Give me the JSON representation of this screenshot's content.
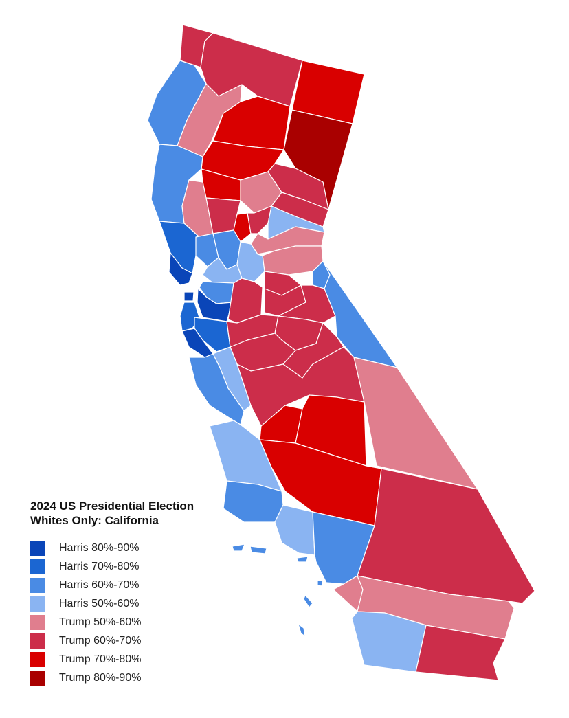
{
  "title_line1": "2024 US Presidential Election",
  "title_line2": "Whites Only: California",
  "legend": [
    {
      "label": "Harris 80%-90%",
      "color": "#0a45b8"
    },
    {
      "label": "Harris 70%-80%",
      "color": "#1b66d2"
    },
    {
      "label": "Harris 60%-70%",
      "color": "#4a8be4"
    },
    {
      "label": "Harris 50%-60%",
      "color": "#8ab4f2"
    },
    {
      "label": "Trump 50%-60%",
      "color": "#e07e8e"
    },
    {
      "label": "Trump 60%-70%",
      "color": "#cc2d4a"
    },
    {
      "label": "Trump 70%-80%",
      "color": "#d90000"
    },
    {
      "label": "Trump 80%-90%",
      "color": "#a90000"
    }
  ],
  "regions": [
    {
      "name": "Del Norte",
      "color": "#cc2d4a"
    },
    {
      "name": "Siskiyou",
      "color": "#cc2d4a"
    },
    {
      "name": "Modoc",
      "color": "#d90000"
    },
    {
      "name": "Humboldt",
      "color": "#4a8be4"
    },
    {
      "name": "Trinity",
      "color": "#e07e8e"
    },
    {
      "name": "Shasta",
      "color": "#d90000"
    },
    {
      "name": "Lassen",
      "color": "#a90000"
    },
    {
      "name": "Tehama",
      "color": "#d90000"
    },
    {
      "name": "Plumas",
      "color": "#cc2d4a"
    },
    {
      "name": "Mendocino",
      "color": "#4a8be4"
    },
    {
      "name": "Glenn",
      "color": "#d90000"
    },
    {
      "name": "Butte",
      "color": "#e07e8e"
    },
    {
      "name": "Sierra",
      "color": "#cc2d4a"
    },
    {
      "name": "Lake",
      "color": "#e07e8e"
    },
    {
      "name": "Colusa",
      "color": "#cc2d4a"
    },
    {
      "name": "Sutter",
      "color": "#d90000"
    },
    {
      "name": "Yuba",
      "color": "#cc2d4a"
    },
    {
      "name": "Nevada",
      "color": "#8ab4f2"
    },
    {
      "name": "Placer",
      "color": "#e07e8e"
    },
    {
      "name": "El Dorado",
      "color": "#e07e8e"
    },
    {
      "name": "Sonoma",
      "color": "#1b66d2"
    },
    {
      "name": "Napa",
      "color": "#4a8be4"
    },
    {
      "name": "Yolo",
      "color": "#4a8be4"
    },
    {
      "name": "Sacramento",
      "color": "#8ab4f2"
    },
    {
      "name": "Solano",
      "color": "#8ab4f2"
    },
    {
      "name": "Marin",
      "color": "#0a45b8"
    },
    {
      "name": "Contra Costa",
      "color": "#4a8be4"
    },
    {
      "name": "Alameda",
      "color": "#0a45b8"
    },
    {
      "name": "San Francisco",
      "color": "#0a45b8"
    },
    {
      "name": "San Mateo",
      "color": "#1b66d2"
    },
    {
      "name": "Santa Clara",
      "color": "#1b66d2"
    },
    {
      "name": "Santa Cruz",
      "color": "#0a45b8"
    },
    {
      "name": "San Joaquin",
      "color": "#cc2d4a"
    },
    {
      "name": "Amador",
      "color": "#cc2d4a"
    },
    {
      "name": "Calaveras",
      "color": "#cc2d4a"
    },
    {
      "name": "Alpine",
      "color": "#4a8be4"
    },
    {
      "name": "Tuolumne",
      "color": "#cc2d4a"
    },
    {
      "name": "Mono",
      "color": "#4a8be4"
    },
    {
      "name": "Stanislaus",
      "color": "#cc2d4a"
    },
    {
      "name": "Mariposa",
      "color": "#cc2d4a"
    },
    {
      "name": "Merced",
      "color": "#cc2d4a"
    },
    {
      "name": "Madera",
      "color": "#cc2d4a"
    },
    {
      "name": "San Benito",
      "color": "#8ab4f2"
    },
    {
      "name": "Monterey",
      "color": "#4a8be4"
    },
    {
      "name": "Fresno",
      "color": "#cc2d4a"
    },
    {
      "name": "Inyo",
      "color": "#e07e8e"
    },
    {
      "name": "Kings",
      "color": "#d90000"
    },
    {
      "name": "Tulare",
      "color": "#d90000"
    },
    {
      "name": "San Luis Obispo",
      "color": "#8ab4f2"
    },
    {
      "name": "Kern",
      "color": "#d90000"
    },
    {
      "name": "Santa Barbara",
      "color": "#4a8be4"
    },
    {
      "name": "Ventura",
      "color": "#8ab4f2"
    },
    {
      "name": "Los Angeles",
      "color": "#4a8be4"
    },
    {
      "name": "San Bernardino",
      "color": "#cc2d4a"
    },
    {
      "name": "Orange",
      "color": "#e07e8e"
    },
    {
      "name": "Riverside",
      "color": "#e07e8e"
    },
    {
      "name": "San Diego",
      "color": "#8ab4f2"
    },
    {
      "name": "Imperial",
      "color": "#cc2d4a"
    },
    {
      "name": "Channel Islands",
      "color": "#4a8be4"
    }
  ]
}
